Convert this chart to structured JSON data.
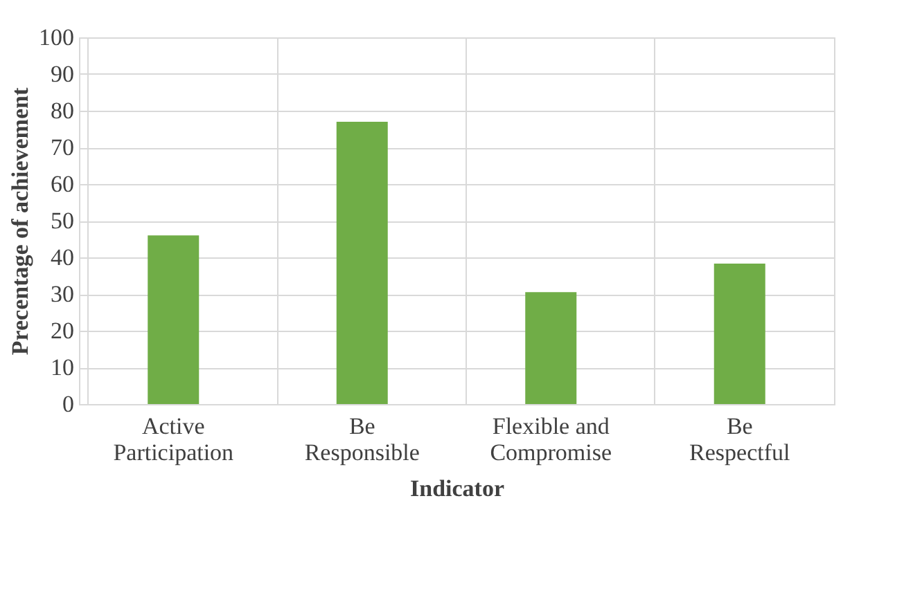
{
  "chart_data": {
    "type": "bar",
    "xlabel": "Indicator",
    "ylabel": "Precentage of achievement",
    "categories": [
      "Active Participation",
      "Be Responsible",
      "Flexible and Compromise",
      "Be Respectful"
    ],
    "values": [
      46,
      77,
      30.5,
      38.3
    ],
    "color": "#70ad47",
    "ylim": [
      0,
      100
    ],
    "yticks": [
      0,
      10,
      20,
      30,
      40,
      50,
      60,
      70,
      80,
      90,
      100
    ],
    "grid": true
  }
}
